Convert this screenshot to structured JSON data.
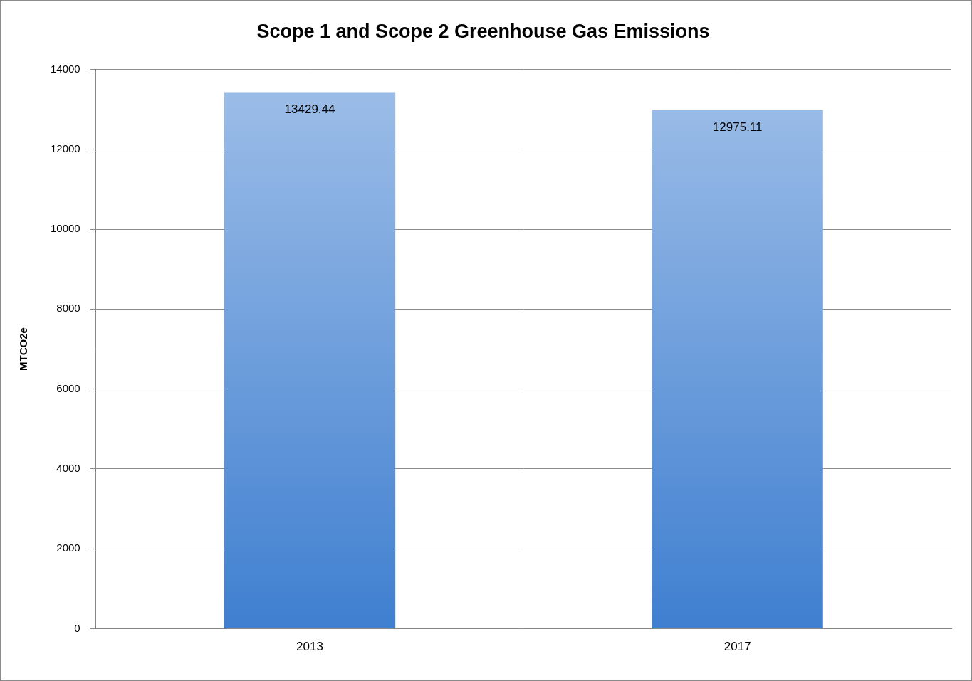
{
  "chart_data": {
    "type": "bar",
    "title": "Scope 1 and Scope 2 Greenhouse Gas Emissions",
    "y_label": "MTCO2e",
    "categories": [
      "2013",
      "2017"
    ],
    "values": [
      13429.44,
      12975.11
    ],
    "color": "#3f7fd0",
    "ylim": [
      0,
      14000
    ],
    "yticks": [
      0,
      2000,
      4000,
      6000,
      8000,
      10000,
      12000,
      14000
    ],
    "grid": true,
    "data_labels": true
  }
}
